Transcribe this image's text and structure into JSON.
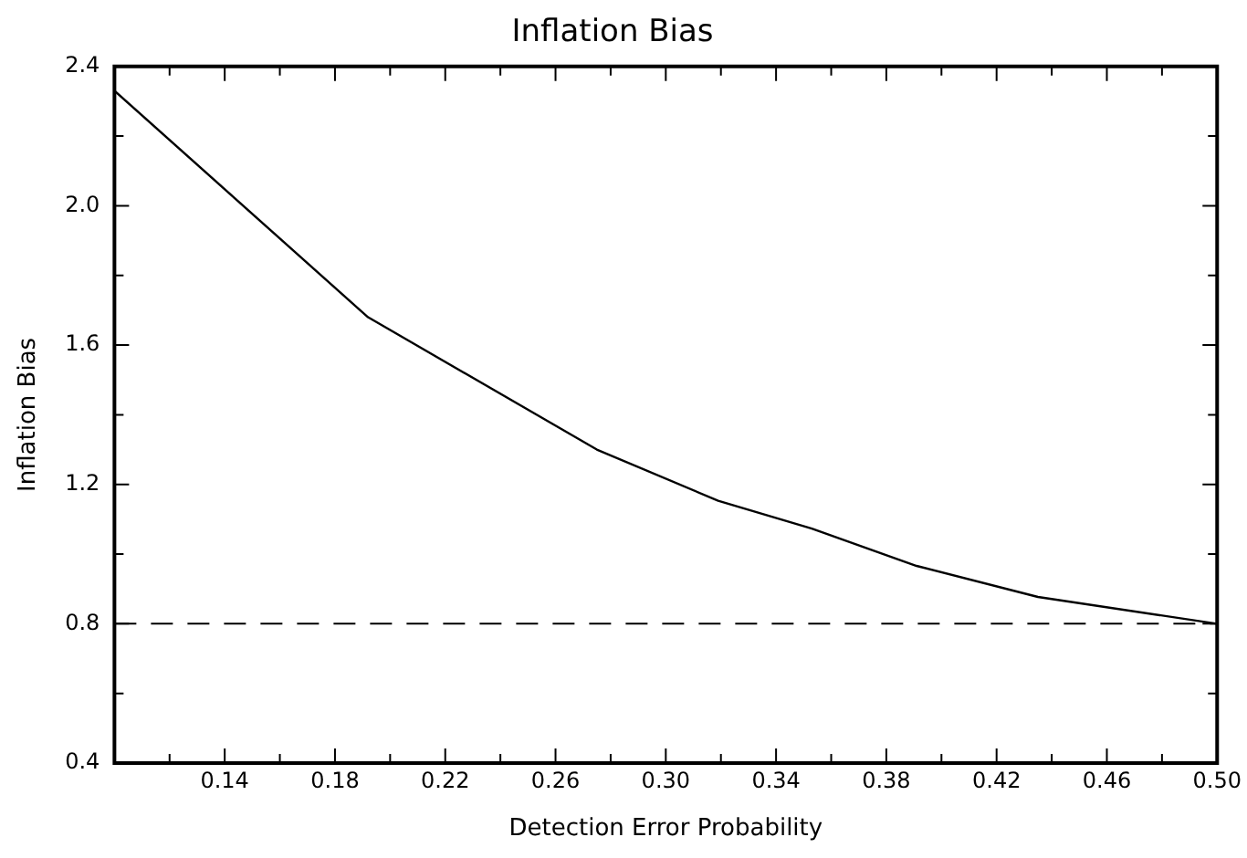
{
  "chart_data": {
    "type": "line",
    "title": "Inflation Bias",
    "xlabel": "Detection Error Probability",
    "ylabel": "Inflation Bias",
    "x": [
      0.1,
      0.192,
      0.275,
      0.319,
      0.353,
      0.391,
      0.435,
      0.5
    ],
    "series": [
      {
        "color": "#000000",
        "values": [
          2.33,
          1.68,
          1.3,
          1.153,
          1.073,
          0.966,
          0.877,
          0.8
        ]
      }
    ],
    "xlim": [
      0.1,
      0.5
    ],
    "xticks": [
      {
        "value": 0.12,
        "label": null
      },
      0.14,
      {
        "value": 0.16,
        "label": null
      },
      0.18,
      {
        "value": 0.2,
        "label": null
      },
      0.22,
      {
        "value": 0.24,
        "label": null
      },
      0.26,
      {
        "value": 0.28,
        "label": null
      },
      {
        "value": 0.3,
        "label": "0.30"
      },
      {
        "value": 0.32,
        "label": null
      },
      0.34,
      {
        "value": 0.36,
        "label": null
      },
      0.38,
      {
        "value": 0.4,
        "label": null
      },
      0.42,
      {
        "value": 0.44,
        "label": null
      },
      0.46,
      {
        "value": 0.48,
        "label": null
      },
      {
        "value": 0.5,
        "label": "0.50"
      }
    ],
    "ylim": [
      0.4,
      2.4
    ],
    "yticks": [
      0.4,
      {
        "value": 0.6,
        "label": null
      },
      0.8,
      {
        "value": 1.0,
        "label": null
      },
      1.2,
      {
        "value": 1.4,
        "label": null
      },
      1.6,
      {
        "value": 1.8,
        "label": null
      },
      {
        "value": 2.0,
        "label": "2.0"
      },
      {
        "value": 2.2,
        "label": null
      },
      2.4
    ],
    "ref_lines": [
      {
        "axis": "y",
        "value": 0.8,
        "line_style": "dashed",
        "color": "#000000"
      }
    ],
    "grid": false,
    "legend": false,
    "marker": "none",
    "line_style": "solid"
  }
}
